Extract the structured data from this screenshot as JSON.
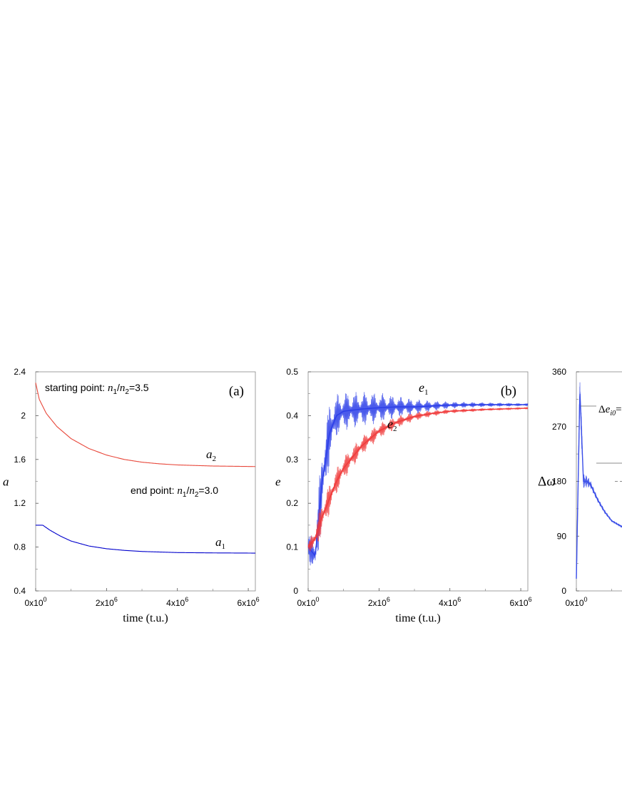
{
  "chart_data": [
    {
      "type": "line",
      "panel_label": "(a)",
      "xlabel": "time (t.u.)",
      "ylabel": "a",
      "xlim": [
        0,
        6200000
      ],
      "ylim": [
        0.4,
        2.4
      ],
      "x_ticks": [
        0,
        2000000,
        4000000,
        6000000
      ],
      "x_tick_labels": [
        {
          "base": "0x10",
          "exp": "0"
        },
        {
          "base": "2x10",
          "exp": "6"
        },
        {
          "base": "4x10",
          "exp": "6"
        },
        {
          "base": "6x10",
          "exp": "6"
        }
      ],
      "y_ticks": [
        0.4,
        0.8,
        1.2,
        1.6,
        2.0,
        2.4
      ],
      "y_tick_labels": [
        "0.4",
        "0.8",
        "1.2",
        "1.6",
        "2",
        "2.4"
      ],
      "annotations": {
        "start_prefix": "starting point: ",
        "start_n1": "n",
        "start_sub1": "1",
        "start_slash": "/",
        "start_n2": "n",
        "start_sub2": "2",
        "start_val": "=3.5",
        "end_prefix": "end point: ",
        "end_n1": "n",
        "end_sub1": "1",
        "end_slash": "/",
        "end_n2": "n",
        "end_sub2": "2",
        "end_val": "=3.0"
      },
      "series": [
        {
          "name": "a2",
          "label_base": "a",
          "label_sub": "2",
          "color": "#e8473a",
          "x": [
            0,
            100000,
            300000,
            600000,
            1000000,
            1500000,
            2000000,
            2500000,
            3000000,
            3500000,
            4000000,
            4500000,
            5000000,
            5500000,
            6200000
          ],
          "y": [
            2.3,
            2.15,
            2.02,
            1.9,
            1.79,
            1.7,
            1.64,
            1.6,
            1.575,
            1.56,
            1.55,
            1.545,
            1.54,
            1.538,
            1.535
          ]
        },
        {
          "name": "a1",
          "label_base": "a",
          "label_sub": "1",
          "color": "#0000cc",
          "x": [
            0,
            200000,
            400000,
            700000,
            1000000,
            1500000,
            2000000,
            2500000,
            3000000,
            3500000,
            4000000,
            5000000,
            6200000
          ],
          "y": [
            1.0,
            1.0,
            0.955,
            0.9,
            0.855,
            0.81,
            0.785,
            0.77,
            0.76,
            0.755,
            0.75,
            0.747,
            0.745
          ]
        }
      ]
    },
    {
      "type": "line",
      "panel_label": "(b)",
      "xlabel": "time (t.u.)",
      "ylabel": "e",
      "xlim": [
        0,
        6200000
      ],
      "ylim": [
        0,
        0.5
      ],
      "x_ticks": [
        0,
        2000000,
        4000000,
        6000000
      ],
      "x_tick_labels": [
        {
          "base": "0x10",
          "exp": "0"
        },
        {
          "base": "2x10",
          "exp": "6"
        },
        {
          "base": "4x10",
          "exp": "6"
        },
        {
          "base": "6x10",
          "exp": "6"
        }
      ],
      "y_ticks": [
        0,
        0.1,
        0.2,
        0.3,
        0.4,
        0.5
      ],
      "y_tick_labels": [
        "0",
        "0.1",
        "0.2",
        "0.3",
        "0.4",
        "0.5"
      ],
      "series": [
        {
          "name": "e1",
          "label_base": "e",
          "label_sub": "1",
          "color": "#2a3de8",
          "x": [
            0,
            200000,
            400000,
            600000,
            800000,
            1000000,
            1500000,
            2000000,
            2500000,
            3000000,
            3500000,
            4000000,
            5000000,
            6200000
          ],
          "y": [
            0.1,
            0.08,
            0.25,
            0.36,
            0.4,
            0.41,
            0.415,
            0.418,
            0.42,
            0.42,
            0.422,
            0.424,
            0.425,
            0.425
          ],
          "amp": [
            0.03,
            0.05,
            0.1,
            0.07,
            0.05,
            0.045,
            0.04,
            0.035,
            0.025,
            0.018,
            0.012,
            0.008,
            0.005,
            0.003
          ]
        },
        {
          "name": "e2",
          "label_base": "e",
          "label_sub": "2",
          "color": "#f03a3a",
          "x": [
            0,
            200000,
            400000,
            600000,
            800000,
            1000000,
            1500000,
            2000000,
            2500000,
            3000000,
            3500000,
            4000000,
            5000000,
            6200000
          ],
          "y": [
            0.1,
            0.12,
            0.17,
            0.21,
            0.25,
            0.28,
            0.33,
            0.365,
            0.385,
            0.398,
            0.405,
            0.41,
            0.414,
            0.417
          ],
          "amp": [
            0.01,
            0.03,
            0.04,
            0.035,
            0.03,
            0.028,
            0.022,
            0.018,
            0.014,
            0.01,
            0.007,
            0.005,
            0.003,
            0.002
          ]
        }
      ]
    },
    {
      "type": "line",
      "ylabel": "Δω",
      "xlim": [
        0,
        6200000
      ],
      "ylim": [
        0,
        360
      ],
      "x_ticks": [
        0
      ],
      "x_tick_labels": [
        {
          "base": "0x10",
          "exp": "0"
        }
      ],
      "y_ticks": [
        0,
        90,
        180,
        270,
        360
      ],
      "y_tick_labels": [
        "0",
        "90",
        "180",
        "270",
        "360"
      ],
      "annotation": {
        "prefix": "Δ",
        "var": "e",
        "sub": "i0",
        "suffix": "="
      },
      "reference_y": 180,
      "series": [
        {
          "name": "Δω",
          "color": "#3a4ee8",
          "x": [
            0,
            100000,
            200000,
            300000,
            400000,
            600000,
            800000,
            1000000,
            1300000,
            1600000
          ],
          "y": [
            20,
            330,
            180,
            180,
            175,
            150,
            130,
            115,
            105,
            100
          ],
          "amp": [
            20,
            30,
            12,
            10,
            6,
            4,
            3,
            2,
            2,
            1
          ]
        }
      ]
    }
  ]
}
